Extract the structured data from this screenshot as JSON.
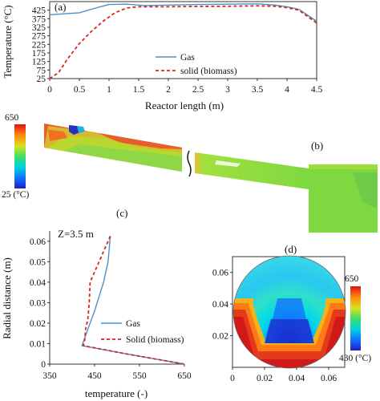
{
  "chart_data": [
    {
      "panel": "(a)",
      "type": "line",
      "xlabel": "Reactor length (m)",
      "ylabel": "Temperature (°C)",
      "xlim": [
        0,
        4.5
      ],
      "ylim": [
        25,
        475
      ],
      "xticks": [
        "0",
        "0.5",
        "1",
        "1.5",
        "2",
        "2.5",
        "3",
        "3.5",
        "4",
        "4.5"
      ],
      "yticks": [
        "25",
        "75",
        "125",
        "175",
        "225",
        "275",
        "325",
        "375",
        "425"
      ],
      "legend_position": "bottom-center",
      "series": [
        {
          "name": "Gas",
          "color": "#4a90c8",
          "style": "solid",
          "x": [
            0,
            0.5,
            0.8,
            1.0,
            1.3,
            1.6,
            2.0,
            2.5,
            3.0,
            3.5,
            3.8,
            4.0,
            4.2,
            4.5
          ],
          "y": [
            398,
            410,
            440,
            458,
            460,
            452,
            455,
            458,
            460,
            462,
            455,
            445,
            430,
            360
          ]
        },
        {
          "name": "solid (biomass)",
          "color": "#d9261c",
          "style": "dashed",
          "x": [
            0,
            0.15,
            0.3,
            0.5,
            0.7,
            0.9,
            1.1,
            1.3,
            1.5,
            2.0,
            2.5,
            3.0,
            3.5,
            3.8,
            4.0,
            4.2,
            4.5
          ],
          "y": [
            25,
            60,
            140,
            230,
            300,
            360,
            410,
            438,
            445,
            445,
            447,
            448,
            450,
            448,
            440,
            425,
            350
          ]
        }
      ]
    },
    {
      "panel": "(b)",
      "type": "heatmap",
      "colorbar_labels": [
        "650",
        "25 (°C)"
      ],
      "colorbar_range": [
        25,
        650
      ]
    },
    {
      "panel": "(c)",
      "type": "line",
      "annotation": "Z=3.5 m",
      "xlabel": "temperature (-)",
      "ylabel": "Radial distance (m)",
      "xlim": [
        350,
        650
      ],
      "ylim": [
        0,
        0.065
      ],
      "xticks": [
        "350",
        "450",
        "550",
        "650"
      ],
      "yticks": [
        "0",
        "0.01",
        "0.02",
        "0.03",
        "0.04",
        "0.05",
        "0.06"
      ],
      "legend_position": "bottom-right",
      "series": [
        {
          "name": "Gas",
          "color": "#4a90c8",
          "style": "solid",
          "x": [
            485,
            480,
            470,
            460,
            450,
            440,
            430,
            422,
            520,
            650
          ],
          "y": [
            0.0625,
            0.05,
            0.04,
            0.033,
            0.026,
            0.02,
            0.014,
            0.009,
            0.005,
            0.0
          ]
        },
        {
          "name": "Solid (biomass)",
          "color": "#d9261c",
          "style": "dashed",
          "x": [
            485,
            460,
            440,
            438,
            435,
            430,
            428,
            425,
            520,
            650
          ],
          "y": [
            0.0625,
            0.05,
            0.04,
            0.03,
            0.022,
            0.017,
            0.012,
            0.009,
            0.005,
            0.0
          ]
        }
      ]
    },
    {
      "panel": "(d)",
      "type": "heatmap",
      "xticks": [
        "0",
        "0.02",
        "0.04",
        "0.06"
      ],
      "yticks": [
        "0.02",
        "0.04",
        "0.06"
      ],
      "colorbar_labels": [
        "650",
        "430 (°C)"
      ],
      "colorbar_range": [
        430,
        650
      ]
    }
  ]
}
